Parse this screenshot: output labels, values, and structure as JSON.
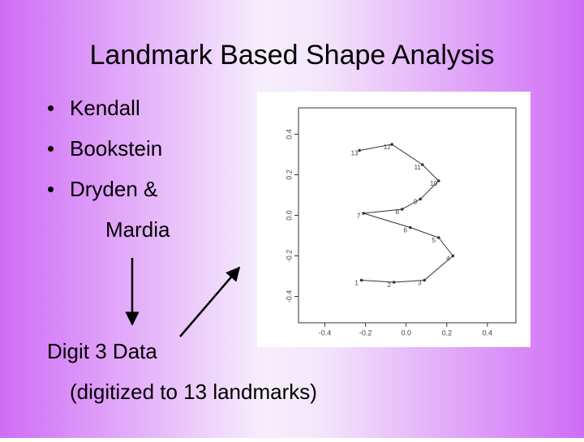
{
  "title": "Landmark Based Shape Analysis",
  "bullets": [
    "Kendall",
    "Bookstein",
    "Dryden &"
  ],
  "bullet_continuation": "Mardia",
  "caption": [
    "Digit 3 Data",
    "(digitized to 13 landmarks)"
  ],
  "chart_data": {
    "type": "line",
    "x": [
      -0.22,
      -0.06,
      0.09,
      0.23,
      0.16,
      0.02,
      -0.21,
      -0.02,
      0.07,
      0.16,
      0.08,
      -0.07,
      -0.23
    ],
    "values": [
      -0.32,
      -0.33,
      -0.32,
      -0.2,
      -0.11,
      -0.06,
      0.01,
      0.03,
      0.08,
      0.17,
      0.25,
      0.35,
      0.32
    ],
    "point_labels": [
      "1",
      "2",
      "3",
      "4",
      "5",
      "6",
      "7",
      "8",
      "9",
      "10",
      "11",
      "12",
      "13"
    ],
    "color": "#333333",
    "xlim": [
      -0.53,
      0.54
    ],
    "ylim": [
      -0.53,
      0.53
    ],
    "xticks": [
      -0.4,
      -0.2,
      {
        "value": 0,
        "label": "0.0"
      },
      0.2,
      0.4
    ],
    "yticks": [
      -0.4,
      -0.2,
      {
        "value": 0,
        "label": "0.0"
      },
      0.2,
      0.4
    ]
  }
}
